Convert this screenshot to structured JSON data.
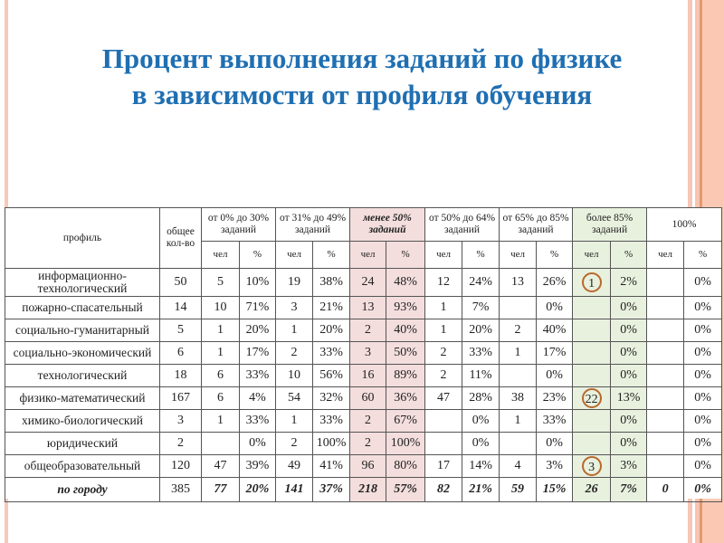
{
  "slide": {
    "title_line1": "Процент выполнения заданий по физике",
    "title_line2": "в зависимости от профиля обучения",
    "accent_color": "#1f6fb2",
    "highlight_pink": "#f3dddd",
    "highlight_green": "#e8f1de",
    "circle_color": "#b9682d"
  },
  "table": {
    "header": {
      "profile": "профиль",
      "total": "общее кол-во",
      "groups": [
        {
          "label": "от 0% до 30% заданий"
        },
        {
          "label": "от 31% до 49% заданий"
        },
        {
          "label": "менее 50% заданий"
        },
        {
          "label": "от 50% до 64% заданий"
        },
        {
          "label": "от 65% до 85% заданий"
        },
        {
          "label": "более 85% заданий"
        },
        {
          "label": "100%"
        }
      ],
      "sub": {
        "count": "чел",
        "percent": "%"
      }
    },
    "rows": [
      {
        "profile": "информационно-технологический",
        "total": "50",
        "g": [
          [
            "5",
            "10%"
          ],
          [
            "19",
            "38%"
          ],
          [
            "24",
            "48%"
          ],
          [
            "12",
            "24%"
          ],
          [
            "13",
            "26%"
          ],
          [
            "1",
            "2%"
          ],
          [
            "",
            "0%"
          ]
        ],
        "circled": true
      },
      {
        "profile": "пожарно-спасательный",
        "total": "14",
        "g": [
          [
            "10",
            "71%"
          ],
          [
            "3",
            "21%"
          ],
          [
            "13",
            "93%"
          ],
          [
            "1",
            "7%"
          ],
          [
            "",
            "0%"
          ],
          [
            "",
            "0%"
          ],
          [
            "",
            "0%"
          ]
        ]
      },
      {
        "profile": "социально-гуманитарный",
        "total": "5",
        "g": [
          [
            "1",
            "20%"
          ],
          [
            "1",
            "20%"
          ],
          [
            "2",
            "40%"
          ],
          [
            "1",
            "20%"
          ],
          [
            "2",
            "40%"
          ],
          [
            "",
            "0%"
          ],
          [
            "",
            "0%"
          ]
        ]
      },
      {
        "profile": "социально-экономический",
        "total": "6",
        "g": [
          [
            "1",
            "17%"
          ],
          [
            "2",
            "33%"
          ],
          [
            "3",
            "50%"
          ],
          [
            "2",
            "33%"
          ],
          [
            "1",
            "17%"
          ],
          [
            "",
            "0%"
          ],
          [
            "",
            "0%"
          ]
        ]
      },
      {
        "profile": "технологический",
        "total": "18",
        "g": [
          [
            "6",
            "33%"
          ],
          [
            "10",
            "56%"
          ],
          [
            "16",
            "89%"
          ],
          [
            "2",
            "11%"
          ],
          [
            "",
            "0%"
          ],
          [
            "",
            "0%"
          ],
          [
            "",
            "0%"
          ]
        ]
      },
      {
        "profile": "физико-математический",
        "total": "167",
        "g": [
          [
            "6",
            "4%"
          ],
          [
            "54",
            "32%"
          ],
          [
            "60",
            "36%"
          ],
          [
            "47",
            "28%"
          ],
          [
            "38",
            "23%"
          ],
          [
            "22",
            "13%"
          ],
          [
            "",
            "0%"
          ]
        ],
        "circled": true
      },
      {
        "profile": "химико-биологический",
        "total": "3",
        "g": [
          [
            "1",
            "33%"
          ],
          [
            "1",
            "33%"
          ],
          [
            "2",
            "67%"
          ],
          [
            "",
            "0%"
          ],
          [
            "1",
            "33%"
          ],
          [
            "",
            "0%"
          ],
          [
            "",
            "0%"
          ]
        ]
      },
      {
        "profile": "юридический",
        "total": "2",
        "g": [
          [
            "",
            "0%"
          ],
          [
            "2",
            "100%"
          ],
          [
            "2",
            "100%"
          ],
          [
            "",
            "0%"
          ],
          [
            "",
            "0%"
          ],
          [
            "",
            "0%"
          ],
          [
            "",
            "0%"
          ]
        ]
      },
      {
        "profile": "общеобразовательный",
        "total": "120",
        "g": [
          [
            "47",
            "39%"
          ],
          [
            "49",
            "41%"
          ],
          [
            "96",
            "80%"
          ],
          [
            "17",
            "14%"
          ],
          [
            "4",
            "3%"
          ],
          [
            "3",
            "3%"
          ],
          [
            "",
            "0%"
          ]
        ],
        "circled": true
      }
    ],
    "total_row": {
      "profile": "по городу",
      "total": "385",
      "g": [
        [
          "77",
          "20%"
        ],
        [
          "141",
          "37%"
        ],
        [
          "218",
          "57%"
        ],
        [
          "82",
          "21%"
        ],
        [
          "59",
          "15%"
        ],
        [
          "26",
          "7%"
        ],
        [
          "0",
          "0%"
        ]
      ]
    }
  }
}
